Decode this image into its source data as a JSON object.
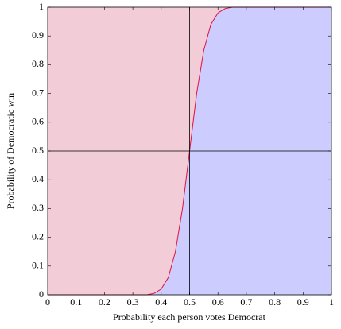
{
  "chart_data": {
    "type": "area_line",
    "x_label": "Probability each person votes Democrat",
    "y_label": "Probability of Democratic win",
    "x": [
      0,
      0.3,
      0.35,
      0.375,
      0.4,
      0.425,
      0.45,
      0.475,
      0.5,
      0.525,
      0.55,
      0.575,
      0.6,
      0.625,
      0.65,
      0.7,
      1
    ],
    "values": [
      0,
      0,
      0,
      0.005,
      0.02,
      0.06,
      0.15,
      0.3,
      0.5,
      0.7,
      0.85,
      0.94,
      0.98,
      0.995,
      1,
      1,
      1
    ],
    "color": "#e0103c",
    "above_color": "#f2cdd8",
    "below_color": "#ccccff",
    "xlim": [
      0,
      1
    ],
    "ylim": [
      0,
      1
    ],
    "xticks": [
      0,
      0.1,
      0.2,
      0.3,
      0.4,
      0.5,
      0.6,
      0.7,
      0.8,
      0.9,
      1
    ],
    "yticks": [
      0,
      0.1,
      0.2,
      0.3,
      0.4,
      0.5,
      0.6,
      0.7,
      0.8,
      0.9,
      1
    ],
    "vline": 0.5,
    "hline": 0.5
  }
}
